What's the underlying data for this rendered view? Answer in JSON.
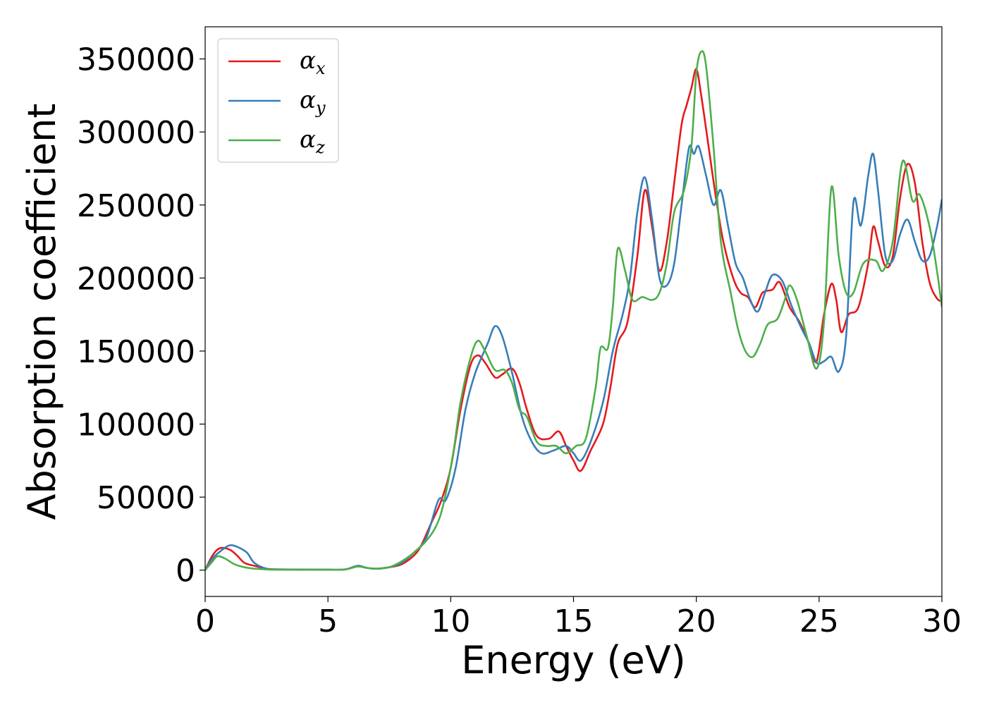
{
  "chart_data": {
    "type": "line",
    "xlabel": "Energy (eV)",
    "ylabel": "Absorption coefficient",
    "xlim": [
      0,
      30
    ],
    "ylim": [
      -18000,
      372000
    ],
    "xticks": [
      0,
      5,
      10,
      15,
      20,
      25,
      30
    ],
    "yticks": [
      0,
      50000,
      100000,
      150000,
      200000,
      250000,
      300000,
      350000
    ],
    "grid": false,
    "legend_position": "top-left",
    "series": [
      {
        "name": "α_x",
        "symbol": "α",
        "subscript": "x",
        "color": "#e41a1c",
        "points": [
          [
            0,
            0
          ],
          [
            0.3,
            10000
          ],
          [
            0.6,
            15000
          ],
          [
            1.0,
            14000
          ],
          [
            1.3,
            10000
          ],
          [
            1.6,
            5000
          ],
          [
            2.0,
            3000
          ],
          [
            2.5,
            1000
          ],
          [
            3,
            500
          ],
          [
            5,
            300
          ],
          [
            5.7,
            500
          ],
          [
            6.2,
            2500
          ],
          [
            6.6,
            1500
          ],
          [
            7,
            1000
          ],
          [
            7.5,
            2000
          ],
          [
            8,
            4000
          ],
          [
            8.5,
            10000
          ],
          [
            8.8,
            17000
          ],
          [
            9.2,
            32000
          ],
          [
            9.6,
            47000
          ],
          [
            10,
            70000
          ],
          [
            10.4,
            110000
          ],
          [
            10.8,
            140000
          ],
          [
            11.1,
            147000
          ],
          [
            11.4,
            142000
          ],
          [
            11.8,
            132000
          ],
          [
            12.1,
            134000
          ],
          [
            12.5,
            138000
          ],
          [
            12.8,
            128000
          ],
          [
            13.1,
            110000
          ],
          [
            13.5,
            92000
          ],
          [
            14,
            90000
          ],
          [
            14.4,
            95000
          ],
          [
            14.7,
            85000
          ],
          [
            15,
            75000
          ],
          [
            15.3,
            68000
          ],
          [
            15.7,
            82000
          ],
          [
            16.2,
            100000
          ],
          [
            16.5,
            125000
          ],
          [
            16.8,
            155000
          ],
          [
            17.2,
            170000
          ],
          [
            17.6,
            215000
          ],
          [
            17.9,
            260000
          ],
          [
            18.2,
            235000
          ],
          [
            18.5,
            205000
          ],
          [
            18.8,
            225000
          ],
          [
            19.1,
            265000
          ],
          [
            19.4,
            305000
          ],
          [
            19.6,
            318000
          ],
          [
            19.8,
            330000
          ],
          [
            20.0,
            343000
          ],
          [
            20.2,
            325000
          ],
          [
            20.5,
            290000
          ],
          [
            20.8,
            255000
          ],
          [
            21.1,
            225000
          ],
          [
            21.5,
            200000
          ],
          [
            21.8,
            190000
          ],
          [
            22.1,
            187000
          ],
          [
            22.4,
            180000
          ],
          [
            22.7,
            190000
          ],
          [
            23.1,
            192000
          ],
          [
            23.4,
            197000
          ],
          [
            23.8,
            180000
          ],
          [
            24.2,
            170000
          ],
          [
            24.6,
            155000
          ],
          [
            24.9,
            143000
          ],
          [
            25.2,
            175000
          ],
          [
            25.5,
            196000
          ],
          [
            25.7,
            185000
          ],
          [
            25.9,
            163000
          ],
          [
            26.2,
            175000
          ],
          [
            26.6,
            180000
          ],
          [
            27.0,
            210000
          ],
          [
            27.2,
            235000
          ],
          [
            27.4,
            225000
          ],
          [
            27.7,
            208000
          ],
          [
            28.0,
            215000
          ],
          [
            28.3,
            255000
          ],
          [
            28.6,
            278000
          ],
          [
            28.9,
            265000
          ],
          [
            29.2,
            225000
          ],
          [
            29.5,
            197000
          ],
          [
            29.8,
            186000
          ],
          [
            30,
            184000
          ]
        ]
      },
      {
        "name": "α_y",
        "symbol": "α",
        "subscript": "y",
        "color": "#377eb8",
        "points": [
          [
            0,
            0
          ],
          [
            0.3,
            8000
          ],
          [
            0.7,
            14000
          ],
          [
            1.0,
            17000
          ],
          [
            1.3,
            16000
          ],
          [
            1.7,
            12000
          ],
          [
            2.0,
            5000
          ],
          [
            2.5,
            1000
          ],
          [
            3,
            500
          ],
          [
            5,
            300
          ],
          [
            5.7,
            500
          ],
          [
            6.2,
            3000
          ],
          [
            6.6,
            1500
          ],
          [
            7,
            1000
          ],
          [
            7.5,
            2000
          ],
          [
            8,
            5000
          ],
          [
            8.5,
            12000
          ],
          [
            9.0,
            22000
          ],
          [
            9.5,
            48000
          ],
          [
            9.8,
            48000
          ],
          [
            10.2,
            70000
          ],
          [
            10.6,
            110000
          ],
          [
            11.0,
            135000
          ],
          [
            11.5,
            155000
          ],
          [
            11.8,
            167000
          ],
          [
            12.1,
            160000
          ],
          [
            12.5,
            135000
          ],
          [
            12.9,
            105000
          ],
          [
            13.3,
            88000
          ],
          [
            13.7,
            80000
          ],
          [
            14.2,
            82000
          ],
          [
            14.7,
            85000
          ],
          [
            15.0,
            80000
          ],
          [
            15.3,
            75000
          ],
          [
            15.7,
            88000
          ],
          [
            16.2,
            115000
          ],
          [
            16.6,
            150000
          ],
          [
            17.0,
            175000
          ],
          [
            17.3,
            200000
          ],
          [
            17.6,
            245000
          ],
          [
            17.9,
            269000
          ],
          [
            18.2,
            240000
          ],
          [
            18.5,
            200000
          ],
          [
            18.8,
            195000
          ],
          [
            19.1,
            210000
          ],
          [
            19.4,
            250000
          ],
          [
            19.7,
            289000
          ],
          [
            19.9,
            285000
          ],
          [
            20.1,
            290000
          ],
          [
            20.4,
            270000
          ],
          [
            20.7,
            250000
          ],
          [
            21.0,
            260000
          ],
          [
            21.3,
            235000
          ],
          [
            21.6,
            210000
          ],
          [
            21.9,
            200000
          ],
          [
            22.2,
            185000
          ],
          [
            22.5,
            177000
          ],
          [
            22.8,
            190000
          ],
          [
            23.1,
            202000
          ],
          [
            23.5,
            198000
          ],
          [
            23.9,
            180000
          ],
          [
            24.3,
            165000
          ],
          [
            24.6,
            155000
          ],
          [
            24.9,
            142000
          ],
          [
            25.2,
            143000
          ],
          [
            25.5,
            146000
          ],
          [
            25.8,
            136000
          ],
          [
            26.1,
            160000
          ],
          [
            26.4,
            252000
          ],
          [
            26.7,
            236000
          ],
          [
            27.0,
            270000
          ],
          [
            27.2,
            285000
          ],
          [
            27.4,
            260000
          ],
          [
            27.7,
            215000
          ],
          [
            28.0,
            212000
          ],
          [
            28.3,
            230000
          ],
          [
            28.6,
            240000
          ],
          [
            28.9,
            225000
          ],
          [
            29.2,
            212000
          ],
          [
            29.5,
            215000
          ],
          [
            29.8,
            235000
          ],
          [
            30,
            254000
          ]
        ]
      },
      {
        "name": "α_z",
        "symbol": "α",
        "subscript": "z",
        "color": "#4daf4a",
        "points": [
          [
            0,
            0
          ],
          [
            0.3,
            6000
          ],
          [
            0.5,
            9500
          ],
          [
            0.8,
            8000
          ],
          [
            1.2,
            4000
          ],
          [
            1.6,
            2000
          ],
          [
            2.0,
            1000
          ],
          [
            2.5,
            500
          ],
          [
            3,
            300
          ],
          [
            5,
            300
          ],
          [
            5.7,
            500
          ],
          [
            6.2,
            2500
          ],
          [
            6.6,
            1500
          ],
          [
            7,
            1000
          ],
          [
            7.5,
            2000
          ],
          [
            8,
            6000
          ],
          [
            8.5,
            12000
          ],
          [
            9.0,
            20000
          ],
          [
            9.4,
            30000
          ],
          [
            9.7,
            45000
          ],
          [
            10.1,
            80000
          ],
          [
            10.4,
            115000
          ],
          [
            10.8,
            145000
          ],
          [
            11.1,
            157000
          ],
          [
            11.4,
            150000
          ],
          [
            11.8,
            137000
          ],
          [
            12.2,
            137000
          ],
          [
            12.5,
            128000
          ],
          [
            12.8,
            110000
          ],
          [
            13.1,
            105000
          ],
          [
            13.5,
            88000
          ],
          [
            13.9,
            85000
          ],
          [
            14.3,
            85000
          ],
          [
            14.7,
            80000
          ],
          [
            15.1,
            85000
          ],
          [
            15.5,
            90000
          ],
          [
            15.9,
            125000
          ],
          [
            16.1,
            152000
          ],
          [
            16.4,
            152000
          ],
          [
            16.6,
            180000
          ],
          [
            16.8,
            220000
          ],
          [
            17.1,
            205000
          ],
          [
            17.4,
            185000
          ],
          [
            17.8,
            187000
          ],
          [
            18.2,
            185000
          ],
          [
            18.5,
            190000
          ],
          [
            18.8,
            210000
          ],
          [
            19.1,
            245000
          ],
          [
            19.5,
            260000
          ],
          [
            19.8,
            290000
          ],
          [
            20.0,
            340000
          ],
          [
            20.2,
            355000
          ],
          [
            20.4,
            345000
          ],
          [
            20.7,
            290000
          ],
          [
            21.0,
            225000
          ],
          [
            21.4,
            190000
          ],
          [
            21.7,
            165000
          ],
          [
            22.0,
            150000
          ],
          [
            22.3,
            146000
          ],
          [
            22.6,
            155000
          ],
          [
            22.9,
            168000
          ],
          [
            23.3,
            172000
          ],
          [
            23.6,
            185000
          ],
          [
            23.8,
            195000
          ],
          [
            24.1,
            185000
          ],
          [
            24.5,
            160000
          ],
          [
            24.9,
            138000
          ],
          [
            25.2,
            170000
          ],
          [
            25.5,
            262000
          ],
          [
            25.8,
            215000
          ],
          [
            26.1,
            190000
          ],
          [
            26.4,
            190000
          ],
          [
            26.8,
            210000
          ],
          [
            27.3,
            212000
          ],
          [
            27.6,
            205000
          ],
          [
            28.0,
            225000
          ],
          [
            28.4,
            280000
          ],
          [
            28.8,
            253000
          ],
          [
            29.1,
            257000
          ],
          [
            29.5,
            235000
          ],
          [
            29.8,
            205000
          ],
          [
            30,
            180000
          ]
        ]
      }
    ]
  }
}
